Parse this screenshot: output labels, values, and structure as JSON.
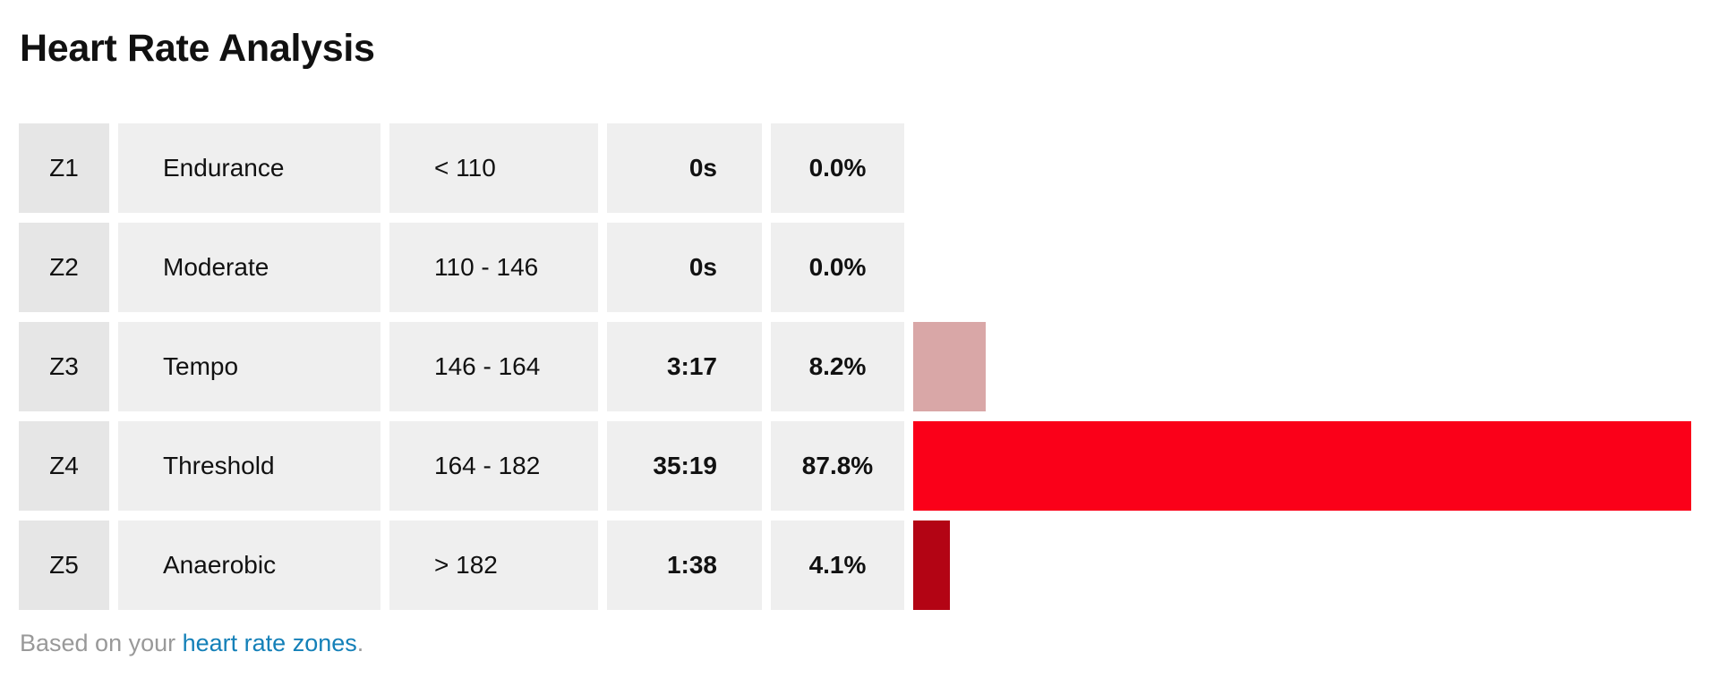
{
  "title": "Heart Rate Analysis",
  "zones": [
    {
      "zone": "Z1",
      "name": "Endurance",
      "range": "< 110",
      "time": "0s",
      "percent": "0.0%",
      "fraction": 0.0,
      "color": "#f7c8c8"
    },
    {
      "zone": "Z2",
      "name": "Moderate",
      "range": "110 - 146",
      "time": "0s",
      "percent": "0.0%",
      "fraction": 0.0,
      "color": "#eeb5b5"
    },
    {
      "zone": "Z3",
      "name": "Tempo",
      "range": "146 - 164",
      "time": "3:17",
      "percent": "8.2%",
      "fraction": 0.082,
      "color": "#d9a7a7"
    },
    {
      "zone": "Z4",
      "name": "Threshold",
      "range": "164 - 182",
      "time": "35:19",
      "percent": "87.8%",
      "fraction": 0.878,
      "color": "#fa0019"
    },
    {
      "zone": "Z5",
      "name": "Anaerobic",
      "range": "> 182",
      "time": "1:38",
      "percent": "4.1%",
      "fraction": 0.041,
      "color": "#b30414"
    }
  ],
  "footer": {
    "prefix": "Based on your ",
    "link": "heart rate zones",
    "suffix": "."
  }
}
